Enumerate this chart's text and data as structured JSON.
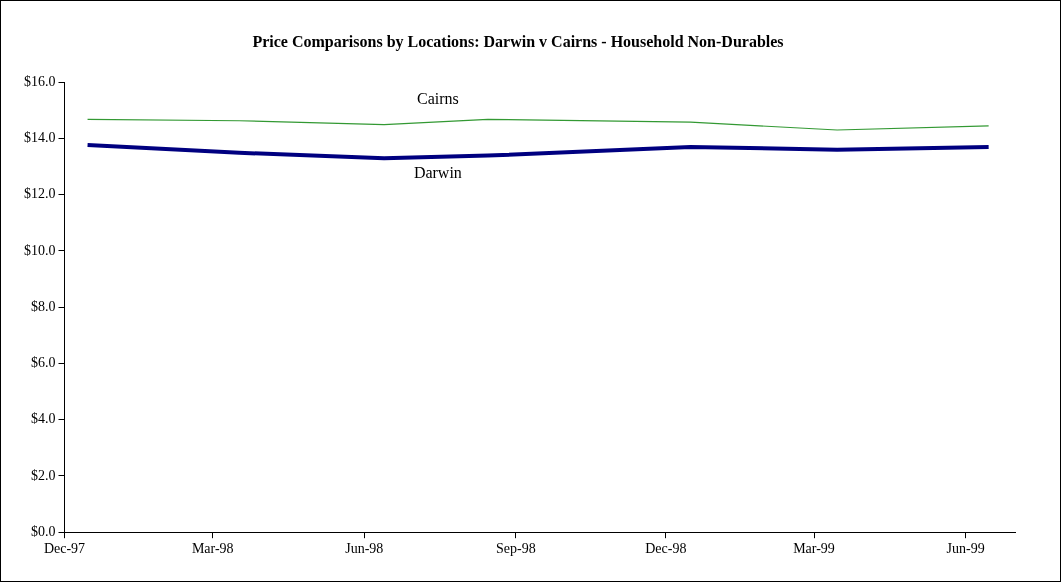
{
  "chart_data": {
    "type": "line",
    "title": "Price Comparisons by Locations: Darwin v Cairns - Household Non-Durables",
    "x": [
      "1997-12-15",
      "1998-03-17",
      "1998-06-13",
      "1998-08-15",
      "1998-12-16",
      "1999-03-15",
      "1999-06-15"
    ],
    "series": [
      {
        "name": "Cairns",
        "color": "#339933",
        "values": [
          14.68,
          14.63,
          14.49,
          14.68,
          14.58,
          14.3,
          14.45
        ]
      },
      {
        "name": "Darwin",
        "color": "#000080",
        "values": [
          13.77,
          13.49,
          13.3,
          13.39,
          13.7,
          13.6,
          13.7
        ]
      }
    ],
    "xlim": [
      "1997-12-01",
      "1999-07-01"
    ],
    "xticks": [
      {
        "value": "1997-12-01",
        "label": "Dec-97"
      },
      {
        "value": "1998-03-01",
        "label": "Mar-98"
      },
      {
        "value": "1998-06-01",
        "label": "Jun-98"
      },
      {
        "value": "1998-09-01",
        "label": "Sep-98"
      },
      {
        "value": "1998-12-01",
        "label": "Dec-98"
      },
      {
        "value": "1999-03-01",
        "label": "Mar-99"
      },
      {
        "value": "1999-06-01",
        "label": "Jun-99"
      }
    ],
    "ylim": [
      0,
      16
    ],
    "yticks": [
      {
        "value": 0,
        "label": "$0.0"
      },
      {
        "value": 2,
        "label": "$2.0"
      },
      {
        "value": 4,
        "label": "$4.0"
      },
      {
        "value": 6,
        "label": "$6.0"
      },
      {
        "value": 8,
        "label": "$8.0"
      },
      {
        "value": 10,
        "label": "$10.0"
      },
      {
        "value": 12,
        "label": "$12.0"
      },
      {
        "value": 14,
        "label": "$14.0"
      },
      {
        "value": 16,
        "label": "$16.0"
      }
    ],
    "grid": false,
    "legend": false,
    "marker": "none",
    "line_style": "solid"
  }
}
